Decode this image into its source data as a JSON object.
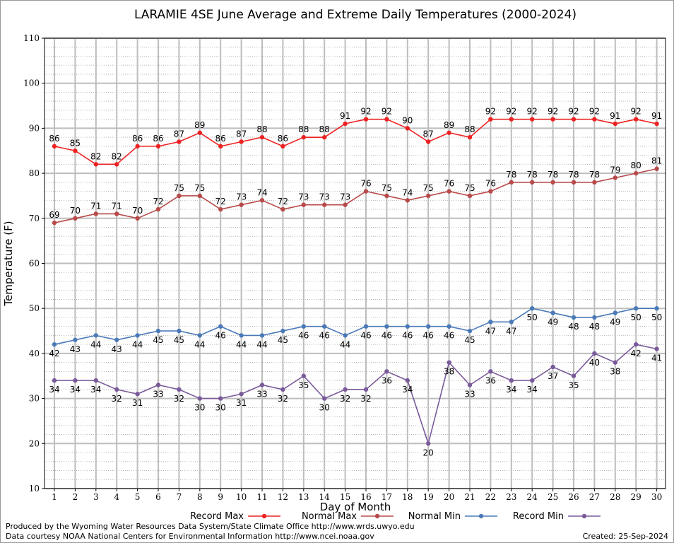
{
  "chart_data": {
    "type": "line",
    "title": "LARAMIE 4SE June Average and Extreme Daily Temperatures (2000-2024)",
    "xlabel": "Day of Month",
    "ylabel": "Temperature (F)",
    "ylim": [
      10,
      110
    ],
    "yticks": [
      10,
      20,
      30,
      40,
      50,
      60,
      70,
      80,
      90,
      100,
      110
    ],
    "x": [
      1,
      2,
      3,
      4,
      5,
      6,
      7,
      8,
      9,
      10,
      11,
      12,
      13,
      14,
      15,
      16,
      17,
      18,
      19,
      20,
      21,
      22,
      23,
      24,
      25,
      26,
      27,
      28,
      29,
      30
    ],
    "grid": true,
    "legend_position": "bottom",
    "series": [
      {
        "name": "Record Max",
        "color": "#ee2222",
        "label_pos": "above",
        "values": [
          86,
          85,
          82,
          82,
          86,
          86,
          87,
          89,
          86,
          87,
          88,
          86,
          88,
          88,
          91,
          92,
          92,
          90,
          87,
          89,
          88,
          92,
          92,
          92,
          92,
          92,
          92,
          91,
          92,
          91
        ]
      },
      {
        "name": "Normal Max",
        "color": "#b84a4a",
        "label_pos": "above",
        "values": [
          69,
          70,
          71,
          71,
          70,
          72,
          75,
          75,
          72,
          73,
          74,
          72,
          73,
          73,
          73,
          76,
          75,
          74,
          75,
          76,
          75,
          76,
          78,
          78,
          78,
          78,
          78,
          79,
          80,
          81
        ]
      },
      {
        "name": "Normal Min",
        "color": "#4a7ab8",
        "label_pos": "below",
        "values": [
          42,
          43,
          44,
          43,
          44,
          45,
          45,
          44,
          46,
          44,
          44,
          45,
          46,
          46,
          44,
          46,
          46,
          46,
          46,
          46,
          45,
          47,
          47,
          50,
          49,
          48,
          48,
          49,
          50,
          50
        ]
      },
      {
        "name": "Record Min",
        "color": "#7a5a9a",
        "label_pos": "below",
        "values": [
          34,
          34,
          34,
          32,
          31,
          33,
          32,
          30,
          30,
          31,
          33,
          32,
          35,
          30,
          32,
          32,
          36,
          34,
          20,
          38,
          33,
          36,
          34,
          34,
          37,
          35,
          40,
          38,
          42,
          41
        ]
      }
    ]
  },
  "footer": {
    "produced_by": "Produced by the Wyoming Water Resources Data System/State Climate Office http://www.wrds.uwyo.edu",
    "courtesy": "Data courtesy NOAA National Centers for Environmental Information http://www.ncei.noaa.gov",
    "created": "Created: 25-Sep-2024"
  }
}
